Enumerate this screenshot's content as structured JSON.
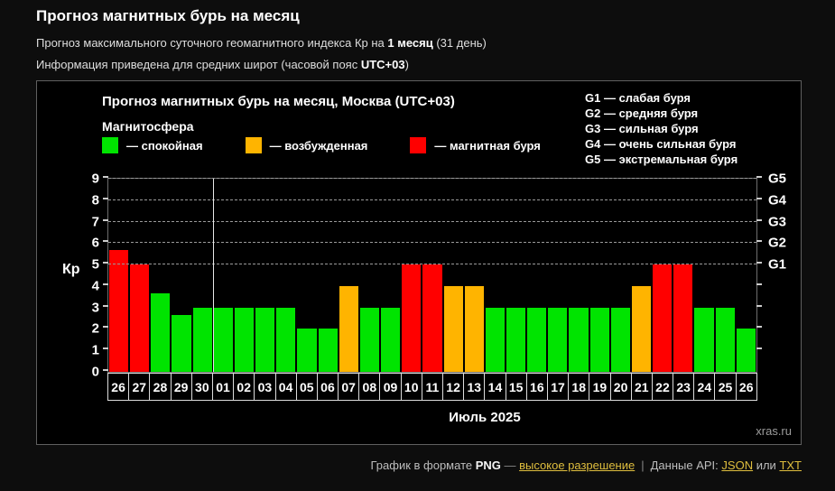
{
  "page": {
    "title": "Прогноз магнитных бурь на месяц",
    "subtitle_prefix": "Прогноз максимального суточного геомагнитного индекса Кр на ",
    "subtitle_bold": "1 месяц",
    "subtitle_suffix": " (31 день)",
    "info_prefix": "Информация приведена для средних широт (часовой пояс ",
    "info_bold": "UTC+03",
    "info_suffix": ")"
  },
  "chart": {
    "title": "Прогноз магнитных бурь на месяц, Москва (UTC+03)",
    "legend_title": "Магнитосфера",
    "legend": [
      {
        "key": "quiet",
        "label": "— спокойная"
      },
      {
        "key": "active",
        "label": "— возбужденная"
      },
      {
        "key": "storm",
        "label": "— магнитная буря"
      }
    ],
    "g_legend": [
      "G1 — слабая буря",
      "G2 — средняя буря",
      "G3 — сильная буря",
      "G4 — очень сильная буря",
      "G5 — экстремальная буря"
    ],
    "ylabel": "Кр",
    "xlabel": "Июль 2025",
    "watermark": "xras.ru"
  },
  "chart_data": {
    "type": "bar",
    "categories": [
      "26",
      "27",
      "28",
      "29",
      "30",
      "01",
      "02",
      "03",
      "04",
      "05",
      "06",
      "07",
      "08",
      "09",
      "10",
      "11",
      "12",
      "13",
      "14",
      "15",
      "16",
      "17",
      "18",
      "19",
      "20",
      "21",
      "22",
      "23",
      "24",
      "25",
      "26"
    ],
    "values": [
      5.67,
      5,
      3.67,
      2.67,
      3,
      3,
      3,
      3,
      3,
      2,
      2,
      4,
      3,
      3,
      5,
      5,
      4,
      4,
      3,
      3,
      3,
      3,
      3,
      3,
      3,
      4,
      5,
      5,
      3,
      3,
      2
    ],
    "statuses": [
      "storm",
      "storm",
      "quiet",
      "quiet",
      "quiet",
      "quiet",
      "quiet",
      "quiet",
      "quiet",
      "quiet",
      "quiet",
      "active",
      "quiet",
      "quiet",
      "storm",
      "storm",
      "active",
      "active",
      "quiet",
      "quiet",
      "quiet",
      "quiet",
      "quiet",
      "quiet",
      "quiet",
      "active",
      "storm",
      "storm",
      "quiet",
      "quiet",
      "quiet"
    ],
    "status_colors": {
      "quiet": "#00e400",
      "active": "#ffb400",
      "storm": "#ff0000"
    },
    "ylim": [
      0,
      9
    ],
    "left_ticks": [
      0,
      1,
      2,
      3,
      4,
      5,
      6,
      7,
      8,
      9
    ],
    "right_ticks": [
      1,
      2,
      3,
      4,
      5,
      6,
      7,
      8,
      9
    ],
    "right_axis_labels": [
      {
        "kp": 5,
        "label": "G1"
      },
      {
        "kp": 6,
        "label": "G2"
      },
      {
        "kp": 7,
        "label": "G3"
      },
      {
        "kp": 8,
        "label": "G4"
      },
      {
        "kp": 9,
        "label": "G5"
      }
    ],
    "gridline_levels": [
      5,
      6,
      7,
      8,
      9
    ],
    "month_separator_index": 5,
    "title": "Прогноз магнитных бурь на месяц, Москва (UTC+03)",
    "xlabel": "Июль 2025",
    "ylabel": "Кр"
  },
  "footer": {
    "text1": "График в формате ",
    "format_name": "PNG",
    "dash": " — ",
    "hires_link": "высокое разрешение",
    "separator": "|",
    "api_text": "Данные API:",
    "json_link": "JSON",
    "or_text": "или",
    "txt_link": "TXT"
  }
}
